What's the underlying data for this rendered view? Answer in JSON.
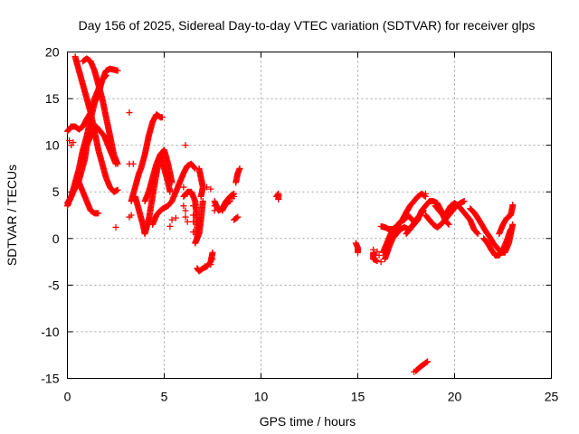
{
  "chart_data": {
    "type": "scatter",
    "title": "Day 156 of 2025, Sidereal Day-to-day VTEC variation (SDTVAR) for receiver glps",
    "xlabel": "GPS time / hours",
    "ylabel": "SDTVAR / TECUs",
    "xlim": [
      0,
      25
    ],
    "ylim": [
      -15,
      20
    ],
    "xticks": [
      "0",
      "5",
      "10",
      "15",
      "20",
      "25"
    ],
    "yticks": [
      "-15",
      "-10",
      "-5",
      "0",
      "5",
      "10",
      "15",
      "20"
    ],
    "grid": true,
    "marker": "+",
    "series_color": "#ff0000",
    "tracks": [
      [
        [
          0.0,
          3.5
        ],
        [
          0.2,
          4.5
        ],
        [
          0.4,
          6.0
        ],
        [
          0.6,
          7.5
        ],
        [
          0.8,
          9.5
        ],
        [
          1.0,
          11.0
        ],
        [
          1.2,
          12.8
        ],
        [
          1.4,
          14.5
        ],
        [
          1.6,
          15.5
        ],
        [
          1.8,
          17.0
        ],
        [
          2.0,
          18.0
        ],
        [
          2.2,
          18.2
        ],
        [
          2.6,
          18.0
        ]
      ],
      [
        [
          0.0,
          11.5
        ],
        [
          0.2,
          12.0
        ],
        [
          0.4,
          12.0
        ],
        [
          0.6,
          11.7
        ],
        [
          0.8,
          12.0
        ],
        [
          1.0,
          12.8
        ],
        [
          1.2,
          13.5
        ],
        [
          1.4,
          15.0
        ],
        [
          1.6,
          16.0
        ],
        [
          1.8,
          17.0
        ],
        [
          2.0,
          17.5
        ]
      ],
      [
        [
          0.4,
          19.5
        ],
        [
          0.6,
          18.0
        ],
        [
          0.8,
          16.5
        ],
        [
          1.0,
          15.0
        ],
        [
          1.2,
          13.5
        ],
        [
          1.4,
          11.5
        ],
        [
          1.6,
          9.5
        ],
        [
          1.8,
          8.0
        ],
        [
          2.0,
          6.5
        ],
        [
          2.2,
          5.5
        ],
        [
          2.4,
          5.0
        ],
        [
          2.6,
          5.2
        ]
      ],
      [
        [
          0.8,
          19.0
        ],
        [
          1.0,
          19.3
        ],
        [
          1.2,
          19.0
        ],
        [
          1.4,
          18.0
        ],
        [
          1.6,
          16.5
        ],
        [
          1.8,
          15.0
        ],
        [
          2.0,
          13.0
        ],
        [
          2.2,
          11.0
        ],
        [
          2.4,
          9.0
        ],
        [
          2.6,
          8.0
        ]
      ],
      [
        [
          0.0,
          3.8
        ],
        [
          0.2,
          4.5
        ],
        [
          0.4,
          5.5
        ],
        [
          0.6,
          6.0
        ],
        [
          0.8,
          5.0
        ],
        [
          1.0,
          4.0
        ],
        [
          1.2,
          3.0
        ],
        [
          1.4,
          2.7
        ],
        [
          1.6,
          2.7
        ]
      ],
      [
        [
          0.5,
          5.5
        ],
        [
          0.7,
          7.0
        ],
        [
          0.9,
          8.5
        ],
        [
          1.0,
          10.0
        ],
        [
          1.1,
          10.5
        ],
        [
          1.3,
          11.5
        ],
        [
          1.5,
          12.0
        ],
        [
          1.7,
          11.5
        ],
        [
          1.9,
          11.0
        ],
        [
          2.1,
          10.0
        ],
        [
          2.3,
          9.0
        ],
        [
          2.5,
          8.0
        ]
      ],
      [
        [
          3.3,
          4.0
        ],
        [
          3.5,
          5.5
        ],
        [
          3.7,
          7.0
        ],
        [
          3.8,
          7.5
        ],
        [
          4.0,
          9.0
        ],
        [
          4.2,
          11.0
        ],
        [
          4.4,
          12.5
        ],
        [
          4.6,
          13.3
        ],
        [
          4.8,
          13.0
        ],
        [
          4.9,
          13.0
        ]
      ],
      [
        [
          3.5,
          4.5
        ],
        [
          3.7,
          3.0
        ],
        [
          3.9,
          1.5
        ],
        [
          4.0,
          0.5
        ],
        [
          4.2,
          2.0
        ],
        [
          4.4,
          4.5
        ],
        [
          4.6,
          7.0
        ],
        [
          4.8,
          9.0
        ],
        [
          5.0,
          7.5
        ],
        [
          5.2,
          6.0
        ],
        [
          5.3,
          5.0
        ]
      ],
      [
        [
          4.0,
          4.0
        ],
        [
          4.2,
          5.0
        ],
        [
          4.4,
          6.5
        ],
        [
          4.6,
          8.0
        ],
        [
          4.8,
          9.0
        ],
        [
          5.0,
          9.5
        ],
        [
          5.2,
          8.0
        ],
        [
          5.4,
          6.0
        ]
      ],
      [
        [
          4.4,
          1.5
        ],
        [
          4.6,
          2.5
        ],
        [
          4.8,
          3.0
        ],
        [
          5.0,
          3.3
        ],
        [
          5.2,
          3.5
        ],
        [
          5.4,
          4.0
        ],
        [
          5.6,
          5.0
        ],
        [
          5.8,
          6.0
        ],
        [
          6.0,
          7.0
        ],
        [
          6.2,
          7.8
        ],
        [
          6.4,
          8.0
        ],
        [
          6.6,
          7.5
        ]
      ],
      [
        [
          6.0,
          4.5
        ],
        [
          6.2,
          5.0
        ],
        [
          6.4,
          5.0
        ],
        [
          6.6,
          4.0
        ],
        [
          6.7,
          2.0
        ],
        [
          6.7,
          0.0
        ],
        [
          6.6,
          -0.5
        ],
        [
          6.8,
          0.5
        ],
        [
          6.9,
          2.0
        ],
        [
          7.0,
          4.0
        ]
      ],
      [
        [
          6.8,
          7.5
        ],
        [
          6.9,
          6.5
        ],
        [
          7.0,
          5.5
        ],
        [
          6.9,
          4.5
        ]
      ],
      [
        [
          6.7,
          -3.2
        ],
        [
          6.8,
          -3.5
        ],
        [
          7.0,
          -3.2
        ],
        [
          7.2,
          -3.0
        ],
        [
          7.4,
          -2.5
        ],
        [
          7.5,
          -1.5
        ]
      ],
      [
        [
          7.6,
          4.0
        ],
        [
          7.7,
          3.5
        ],
        [
          7.8,
          3.0
        ],
        [
          8.0,
          3.2
        ],
        [
          8.2,
          4.0
        ],
        [
          8.4,
          4.5
        ],
        [
          8.6,
          4.8
        ]
      ],
      [
        [
          8.0,
          3.0
        ],
        [
          8.2,
          3.8
        ],
        [
          8.4,
          4.0
        ]
      ],
      [
        [
          8.7,
          6.0
        ],
        [
          8.8,
          7.0
        ],
        [
          8.9,
          7.5
        ]
      ],
      [
        [
          8.6,
          2.0
        ],
        [
          8.8,
          2.3
        ]
      ],
      [
        [
          10.8,
          4.5
        ],
        [
          10.9,
          4.8
        ],
        [
          10.9,
          4.2
        ]
      ],
      [
        [
          14.9,
          -0.5
        ],
        [
          15.0,
          -1.0
        ],
        [
          15.0,
          -1.5
        ]
      ],
      [
        [
          15.8,
          -1.5
        ],
        [
          15.8,
          -2.2
        ],
        [
          16.0,
          -2.4
        ]
      ],
      [
        [
          16.3,
          -1.5
        ],
        [
          16.5,
          -0.5
        ],
        [
          16.7,
          0.5
        ],
        [
          16.9,
          1.0
        ],
        [
          17.1,
          1.5
        ],
        [
          17.3,
          2.0
        ],
        [
          17.5,
          2.8
        ],
        [
          17.7,
          3.5
        ],
        [
          17.9,
          4.0
        ],
        [
          18.1,
          4.5
        ],
        [
          18.3,
          4.8
        ],
        [
          18.5,
          4.5
        ]
      ],
      [
        [
          16.4,
          -2.2
        ],
        [
          16.6,
          -1.0
        ],
        [
          16.8,
          0.0
        ],
        [
          17.0,
          0.5
        ],
        [
          17.2,
          1.0
        ],
        [
          17.4,
          1.2
        ],
        [
          17.6,
          1.0
        ],
        [
          17.8,
          1.3
        ],
        [
          18.0,
          2.0
        ],
        [
          18.2,
          2.5
        ],
        [
          18.4,
          3.0
        ]
      ],
      [
        [
          16.2,
          1.3
        ],
        [
          16.4,
          1.2
        ],
        [
          16.6,
          1.0
        ],
        [
          16.8,
          1.0
        ],
        [
          17.0,
          1.3
        ],
        [
          17.2,
          1.8
        ],
        [
          17.4,
          2.0
        ],
        [
          17.6,
          2.5
        ],
        [
          17.8,
          2.0
        ],
        [
          18.0,
          1.8
        ]
      ],
      [
        [
          17.5,
          0.5
        ],
        [
          17.7,
          1.0
        ],
        [
          17.9,
          1.5
        ],
        [
          18.1,
          2.0
        ],
        [
          18.3,
          3.0
        ],
        [
          18.5,
          3.5
        ],
        [
          18.7,
          4.0
        ],
        [
          18.9,
          4.0
        ],
        [
          19.1,
          3.8
        ],
        [
          19.3,
          3.0
        ],
        [
          19.5,
          2.0
        ],
        [
          19.7,
          1.5
        ]
      ],
      [
        [
          18.5,
          2.5
        ],
        [
          18.7,
          2.0
        ],
        [
          18.9,
          1.5
        ],
        [
          19.1,
          1.2
        ],
        [
          19.3,
          1.5
        ],
        [
          19.5,
          2.0
        ],
        [
          19.7,
          2.5
        ],
        [
          19.9,
          3.0
        ],
        [
          20.1,
          3.5
        ],
        [
          20.3,
          3.8
        ],
        [
          20.5,
          4.0
        ]
      ],
      [
        [
          19.0,
          3.5
        ],
        [
          19.2,
          3.0
        ],
        [
          19.4,
          2.5
        ],
        [
          19.6,
          2.8
        ],
        [
          19.8,
          3.5
        ],
        [
          20.0,
          3.8
        ],
        [
          20.2,
          3.5
        ],
        [
          20.4,
          3.0
        ],
        [
          20.6,
          2.5
        ],
        [
          20.8,
          2.0
        ],
        [
          21.0,
          1.0
        ],
        [
          21.2,
          0.5
        ]
      ],
      [
        [
          20.8,
          3.2
        ],
        [
          21.0,
          2.8
        ],
        [
          21.2,
          2.2
        ],
        [
          21.4,
          1.5
        ],
        [
          21.6,
          0.8
        ],
        [
          21.8,
          0.2
        ],
        [
          22.0,
          -0.5
        ],
        [
          22.2,
          -1.0
        ],
        [
          22.4,
          -1.5
        ],
        [
          22.6,
          -1.5
        ],
        [
          22.8,
          -0.5
        ],
        [
          22.9,
          0.5
        ],
        [
          23.0,
          1.5
        ]
      ],
      [
        [
          21.5,
          0.0
        ],
        [
          21.7,
          -0.5
        ],
        [
          21.9,
          -1.2
        ],
        [
          22.1,
          -1.8
        ],
        [
          22.3,
          -1.8
        ],
        [
          22.5,
          -1.2
        ],
        [
          22.7,
          -0.2
        ],
        [
          22.9,
          1.0
        ]
      ],
      [
        [
          22.3,
          0.5
        ],
        [
          22.5,
          1.5
        ],
        [
          22.7,
          2.2
        ],
        [
          22.9,
          2.5
        ],
        [
          23.0,
          3.5
        ]
      ],
      [
        [
          18.0,
          -14.2
        ],
        [
          18.2,
          -13.8
        ],
        [
          18.4,
          -13.5
        ],
        [
          18.6,
          -13.2
        ]
      ]
    ],
    "scattered_points": [
      [
        0.1,
        10.5
      ],
      [
        0.2,
        10.0
      ],
      [
        0.3,
        10.3
      ],
      [
        3.2,
        13.5
      ],
      [
        3.2,
        8.0
      ],
      [
        3.4,
        8.0
      ],
      [
        3.2,
        2.3
      ],
      [
        3.3,
        2.5
      ],
      [
        2.5,
        1.2
      ],
      [
        5.3,
        1.3
      ],
      [
        5.4,
        2.0
      ],
      [
        5.6,
        2.2
      ],
      [
        6.1,
        10.0
      ],
      [
        6.0,
        5.5
      ],
      [
        6.2,
        4.8
      ],
      [
        6.0,
        3.5
      ],
      [
        6.1,
        3.0
      ],
      [
        6.1,
        2.3
      ],
      [
        6.2,
        1.8
      ],
      [
        6.5,
        3.5
      ],
      [
        6.5,
        2.5
      ],
      [
        6.5,
        1.8
      ],
      [
        6.5,
        0.7
      ],
      [
        7.2,
        5.5
      ],
      [
        7.4,
        5.3
      ],
      [
        7.6,
        3.5
      ],
      [
        7.6,
        3.0
      ],
      [
        7.4,
        -2.8
      ],
      [
        7.5,
        -2.2
      ],
      [
        7.1,
        -3.0
      ],
      [
        8.6,
        4.5
      ],
      [
        8.5,
        4.3
      ],
      [
        15.8,
        -1.2
      ],
      [
        16.1,
        -1.8
      ],
      [
        16.2,
        -2.5
      ],
      [
        16.0,
        -1.4
      ],
      [
        23.0,
        3.6
      ],
      [
        18.5,
        4.8
      ],
      [
        17.9,
        -14.3
      ]
    ]
  }
}
